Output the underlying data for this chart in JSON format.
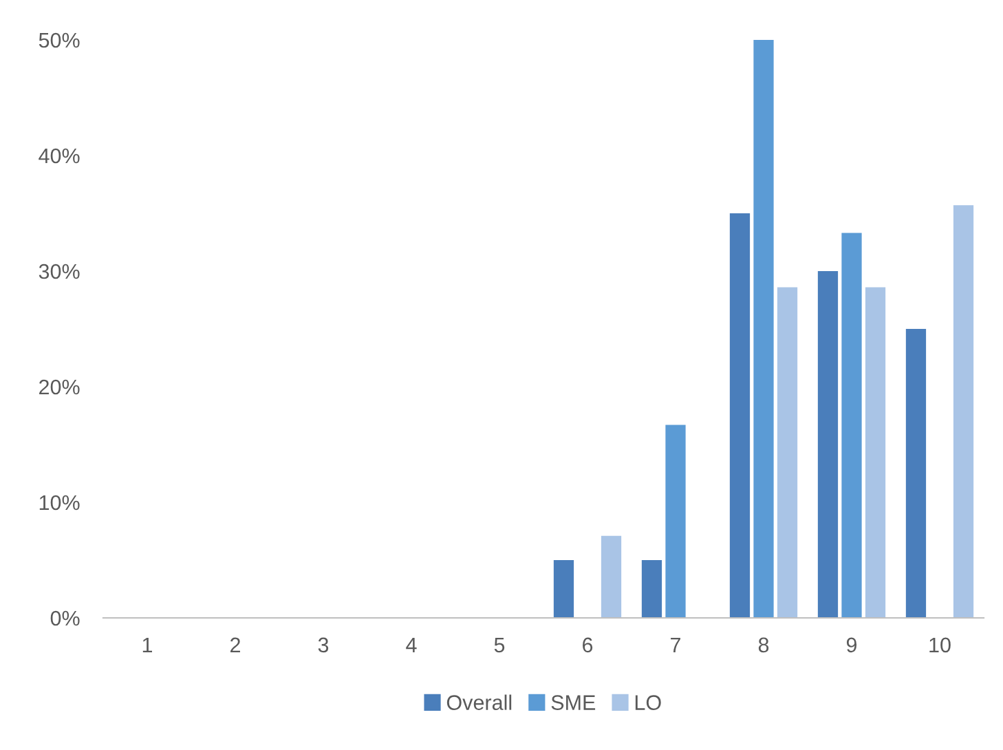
{
  "chart_data": {
    "type": "bar",
    "categories": [
      "1",
      "2",
      "3",
      "4",
      "5",
      "6",
      "7",
      "8",
      "9",
      "10"
    ],
    "series": [
      {
        "name": "Overall",
        "color": "#4a7ebb",
        "values": [
          0,
          0,
          0,
          0,
          0,
          5,
          5,
          35,
          30,
          25
        ]
      },
      {
        "name": "SME",
        "color": "#5b9bd5",
        "values": [
          0,
          0,
          0,
          0,
          0,
          0,
          16.7,
          50,
          33.3,
          0
        ]
      },
      {
        "name": "LO",
        "color": "#a9c4e6",
        "values": [
          0,
          0,
          0,
          0,
          0,
          7.1,
          0,
          28.6,
          28.6,
          35.7
        ]
      }
    ],
    "ylim": [
      0,
      50
    ],
    "yticks": [
      {
        "value": 0,
        "label": "0%"
      },
      {
        "value": 10,
        "label": "10%"
      },
      {
        "value": 20,
        "label": "20%"
      },
      {
        "value": 30,
        "label": "30%"
      },
      {
        "value": 40,
        "label": "40%"
      },
      {
        "value": 50,
        "label": "50%"
      }
    ],
    "grid": false,
    "legend": "bottom"
  }
}
